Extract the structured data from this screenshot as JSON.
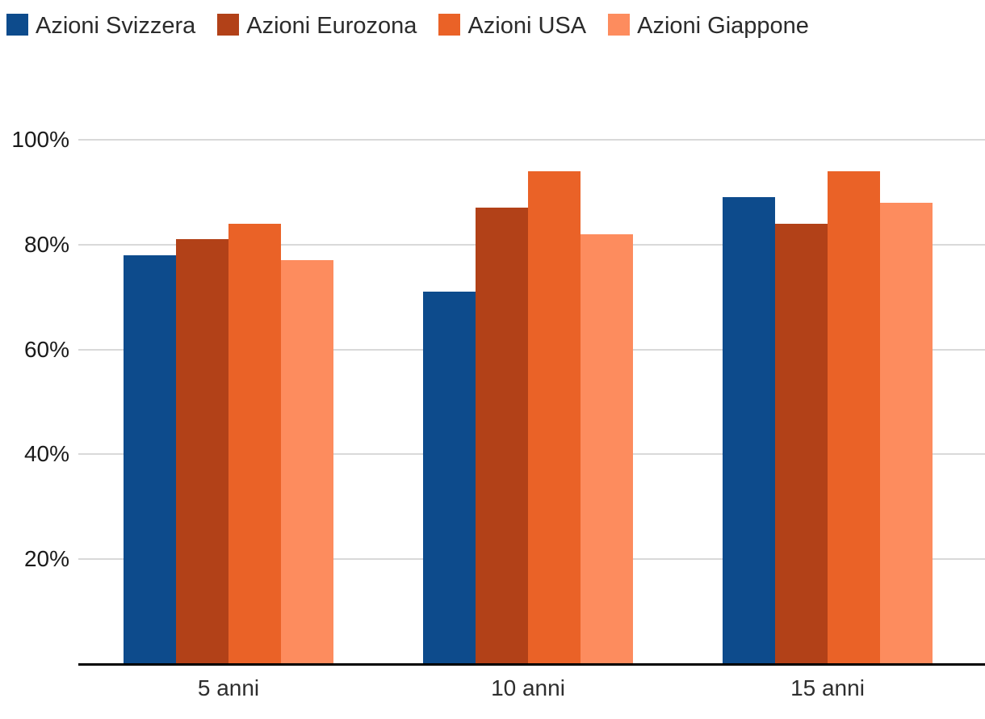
{
  "chart_data": {
    "type": "bar",
    "categories": [
      "5 anni",
      "10 anni",
      "15 anni"
    ],
    "series": [
      {
        "name": "Azioni Svizzera",
        "color": "#0d4b8c",
        "values": [
          78,
          71,
          89
        ]
      },
      {
        "name": "Azioni Eurozona",
        "color": "#b24118",
        "values": [
          81,
          87,
          84
        ]
      },
      {
        "name": "Azioni USA",
        "color": "#ea6227",
        "values": [
          84,
          94,
          94
        ]
      },
      {
        "name": "Azioni Giappone",
        "color": "#fd8c5e",
        "values": [
          77,
          82,
          88
        ]
      }
    ],
    "title": "",
    "xlabel": "",
    "ylabel": "",
    "ylim": [
      0,
      100
    ],
    "yticks": [
      20,
      40,
      60,
      80,
      100
    ],
    "ytick_labels": [
      "20%",
      "40%",
      "60%",
      "80%",
      "100%"
    ],
    "grid": true,
    "legend_position": "top"
  },
  "colors": {
    "gridline": "#d9d9d9",
    "axis_line": "#000000",
    "legend_text": "#2b2b2b",
    "y_tick_text": "#1a1a1a",
    "x_tick_text": "#2e2e2e",
    "background": "#ffffff"
  }
}
